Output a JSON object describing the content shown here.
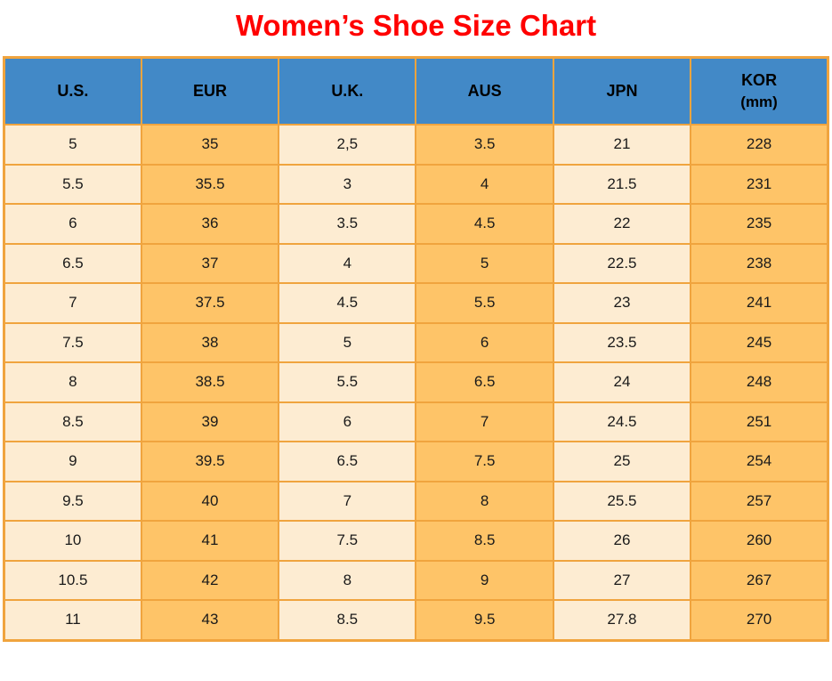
{
  "title": "Women’s Shoe Size Chart",
  "colors": {
    "title_red": "#ff0000",
    "header_blue": "#4289c7",
    "grid_orange": "#f0a43e",
    "cell_cream": "#fdecd2",
    "cell_orange": "#fec468"
  },
  "table": {
    "headers": [
      {
        "label": "U.S."
      },
      {
        "label": "EUR"
      },
      {
        "label": "U.K."
      },
      {
        "label": "AUS"
      },
      {
        "label": "JPN"
      },
      {
        "label": "KOR",
        "sub": "(mm)"
      }
    ],
    "rows": [
      [
        "5",
        "35",
        "2,5",
        "3.5",
        "21",
        "228"
      ],
      [
        "5.5",
        "35.5",
        "3",
        "4",
        "21.5",
        "231"
      ],
      [
        "6",
        "36",
        "3.5",
        "4.5",
        "22",
        "235"
      ],
      [
        "6.5",
        "37",
        "4",
        "5",
        "22.5",
        "238"
      ],
      [
        "7",
        "37.5",
        "4.5",
        "5.5",
        "23",
        "241"
      ],
      [
        "7.5",
        "38",
        "5",
        "6",
        "23.5",
        "245"
      ],
      [
        "8",
        "38.5",
        "5.5",
        "6.5",
        "24",
        "248"
      ],
      [
        "8.5",
        "39",
        "6",
        "7",
        "24.5",
        "251"
      ],
      [
        "9",
        "39.5",
        "6.5",
        "7.5",
        "25",
        "254"
      ],
      [
        "9.5",
        "40",
        "7",
        "8",
        "25.5",
        "257"
      ],
      [
        "10",
        "41",
        "7.5",
        "8.5",
        "26",
        "260"
      ],
      [
        "10.5",
        "42",
        "8",
        "9",
        "27",
        "267"
      ],
      [
        "11",
        "43",
        "8.5",
        "9.5",
        "27.8",
        "270"
      ]
    ]
  },
  "chart_data": {
    "type": "table",
    "title": "Women’s Shoe Size Chart",
    "columns": [
      "U.S.",
      "EUR",
      "U.K.",
      "AUS",
      "JPN",
      "KOR (mm)"
    ],
    "rows": [
      [
        "5",
        "35",
        "2,5",
        "3.5",
        "21",
        "228"
      ],
      [
        "5.5",
        "35.5",
        "3",
        "4",
        "21.5",
        "231"
      ],
      [
        "6",
        "36",
        "3.5",
        "4.5",
        "22",
        "235"
      ],
      [
        "6.5",
        "37",
        "4",
        "5",
        "22.5",
        "238"
      ],
      [
        "7",
        "37.5",
        "4.5",
        "5.5",
        "23",
        "241"
      ],
      [
        "7.5",
        "38",
        "5",
        "6",
        "23.5",
        "245"
      ],
      [
        "8",
        "38.5",
        "5.5",
        "6.5",
        "24",
        "248"
      ],
      [
        "8.5",
        "39",
        "6",
        "7",
        "24.5",
        "251"
      ],
      [
        "9",
        "39.5",
        "6.5",
        "7.5",
        "25",
        "254"
      ],
      [
        "9.5",
        "40",
        "7",
        "8",
        "25.5",
        "257"
      ],
      [
        "10",
        "41",
        "7.5",
        "8.5",
        "26",
        "260"
      ],
      [
        "10.5",
        "42",
        "8",
        "9",
        "27",
        "267"
      ],
      [
        "11",
        "43",
        "8.5",
        "9.5",
        "27.8",
        "270"
      ]
    ],
    "layout_hints": {
      "header_background": "#4289c7",
      "column_background_pattern": [
        "cream",
        "orange",
        "cream",
        "orange",
        "cream",
        "orange"
      ],
      "grid": true,
      "title_color": "#ff0000"
    }
  }
}
